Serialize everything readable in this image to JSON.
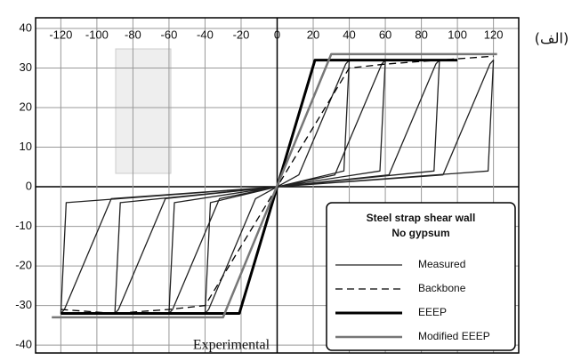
{
  "chart_data": {
    "type": "line",
    "xlim": [
      -134,
      134
    ],
    "ylim": [
      -42,
      42.7
    ],
    "xticks": [
      -120,
      -100,
      -80,
      -60,
      -40,
      -20,
      0,
      20,
      40,
      60,
      80,
      100,
      120
    ],
    "yticks": [
      -40,
      -30,
      -20,
      -10,
      0,
      10,
      20,
      30,
      40
    ],
    "grid": true,
    "legend_title": [
      "Steel strap shear wall",
      "No gypsum"
    ],
    "legend": "lower right",
    "annotations": [
      "Experimental",
      "(الف)"
    ],
    "series": [
      {
        "name": "Measured",
        "color": "#222222",
        "style": "solid",
        "width": 1.3,
        "x": [
          0,
          12,
          38,
          40,
          37,
          0,
          -12,
          -38,
          -40,
          -37,
          0,
          null,
          0,
          32,
          58,
          60,
          57,
          0,
          -32,
          -58,
          -60,
          -57,
          0,
          null,
          0,
          62,
          88,
          90,
          87,
          0,
          -62,
          -88,
          -90,
          -87,
          0,
          null,
          0,
          92,
          118,
          120,
          117,
          0,
          -92,
          -118,
          -120,
          -117,
          0
        ],
        "values": [
          0,
          3,
          31,
          32,
          4,
          0,
          -3,
          -31,
          -32,
          -4,
          0,
          null,
          0,
          3,
          31,
          32,
          4,
          0,
          -3,
          -31,
          -32,
          -4,
          0,
          null,
          0,
          3,
          31,
          32,
          4,
          0,
          -3,
          -31,
          -32,
          -4,
          0,
          null,
          0,
          3,
          31,
          32,
          4,
          0,
          -3,
          -31,
          -32,
          -4,
          0
        ]
      },
      {
        "name": "Backbone",
        "color": "#000000",
        "style": "dashed",
        "width": 1.3,
        "x": [
          -120,
          -90,
          -60,
          -40,
          0,
          40,
          60,
          90,
          120
        ],
        "values": [
          -31,
          -32,
          -31,
          -30,
          0,
          30,
          31,
          32,
          33
        ]
      },
      {
        "name": "EEEP",
        "color": "#000000",
        "style": "solid",
        "width": 3,
        "x": [
          -120,
          -21,
          21,
          100
        ],
        "values": [
          -32,
          -32,
          32,
          32
        ]
      },
      {
        "name": "Modified EEEP",
        "color": "#777777",
        "style": "solid",
        "width": 2.5,
        "x": [
          -125,
          -100,
          -30,
          30,
          122
        ],
        "values": [
          -33,
          -33,
          -33,
          33.5,
          33.5
        ]
      }
    ]
  }
}
